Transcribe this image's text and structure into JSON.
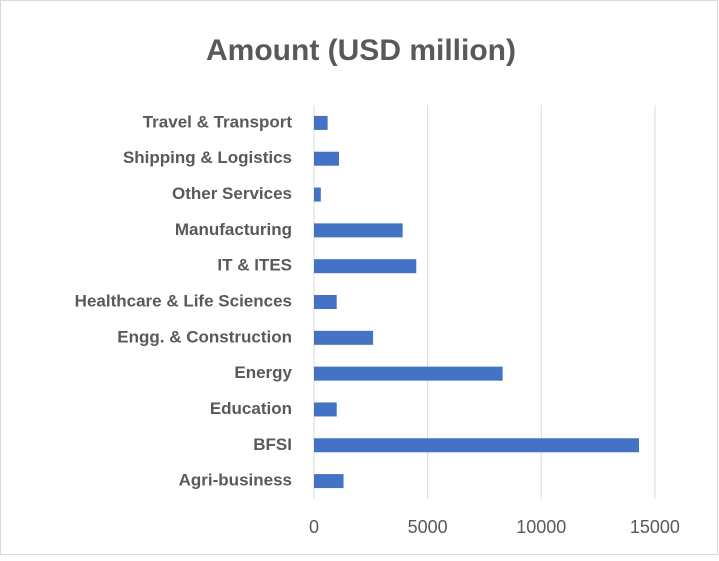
{
  "chart_data": {
    "type": "barh",
    "title": "Amount (USD million)",
    "categories": [
      "Agri-business",
      "BFSI",
      "Education",
      "Energy",
      "Engg. & Construction",
      "Healthcare & Life Sciences",
      "IT & ITES",
      "Manufacturing",
      "Other Services",
      "Shipping & Logistics",
      "Travel & Transport"
    ],
    "values": [
      1300,
      14300,
      1000,
      8300,
      2600,
      1000,
      4500,
      3900,
      300,
      1100,
      600
    ],
    "color": "#4472c4",
    "xlim": [
      0,
      16500
    ],
    "xticks": [
      0,
      5000,
      10000,
      15000
    ],
    "grid": true
  }
}
